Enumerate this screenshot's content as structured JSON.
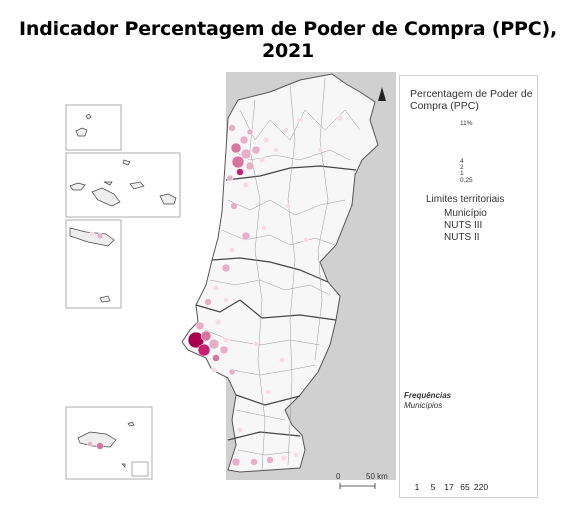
{
  "title": "Indicador Percentagem de Poder de Compra (PPC), 2021",
  "legend": {
    "title": "Percentagem de Poder de Compra (PPC)",
    "size_labels": [
      "11%",
      "4",
      "2",
      "1",
      "0,25"
    ],
    "limits_title": "Limites territoriais",
    "limits": [
      "Município",
      "NUTS III",
      "NUTS II"
    ]
  },
  "frequencies": {
    "title": "Frequências",
    "subtitle": "Municípios",
    "classes": [
      {
        "label": "1",
        "count": 1,
        "color": "#a8004f"
      },
      {
        "label": "5",
        "count": 5,
        "color": "#c71f72"
      },
      {
        "label": "17",
        "count": 17,
        "color": "#d9739f"
      },
      {
        "label": "65",
        "count": 65,
        "color": "#e8aec8"
      },
      {
        "label": "220",
        "count": 220,
        "color": "#f6dbe7"
      }
    ]
  },
  "scale": {
    "start": "0",
    "end": "50 km"
  },
  "colors": {
    "sea": "#d0d0d0",
    "land": "#f2f2f2",
    "accent": "#a8004f"
  }
}
